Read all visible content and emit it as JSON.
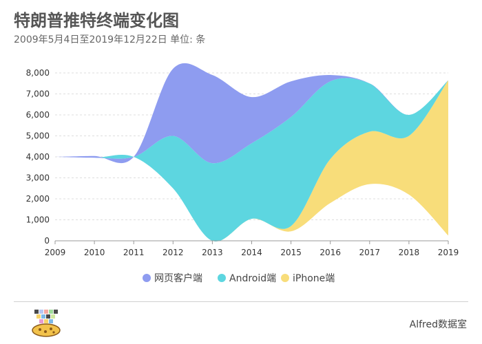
{
  "title": "特朗普推特终端变化图",
  "subtitle": "2009年5月4日至2019年12月22日 单位: 条",
  "brand": "Alfred数据室",
  "chart_data": {
    "type": "area",
    "subtype": "stacked-stream",
    "x": [
      2009,
      2010,
      2011,
      2012,
      2013,
      2014,
      2015,
      2016,
      2017,
      2018,
      2019
    ],
    "ylim": [
      0,
      8000
    ],
    "yticks": [
      0,
      1000,
      2000,
      3000,
      4000,
      5000,
      6000,
      7000,
      8000
    ],
    "ytick_labels": [
      "0",
      "1,000",
      "2,000",
      "3,000",
      "4,000",
      "5,000",
      "6,000",
      "7,000",
      "8,000"
    ],
    "grid": true,
    "legend_position": "bottom",
    "series": [
      {
        "name": "网页客户端",
        "color": "#8E9CF0",
        "values": [
          0,
          80,
          0,
          3200,
          4200,
          2200,
          1700,
          300,
          0,
          0,
          0
        ]
      },
      {
        "name": "Android端",
        "color": "#5DD6E0",
        "values": [
          0,
          0,
          0,
          2500,
          3700,
          3600,
          5200,
          3700,
          2300,
          1000,
          0
        ]
      },
      {
        "name": "iPhone端",
        "color": "#F8DD7A",
        "values": [
          0,
          0,
          0,
          0,
          0,
          0,
          250,
          2100,
          2500,
          2800,
          7400
        ]
      }
    ],
    "baseline": [
      4000,
      3960,
      4000,
      2500,
      0,
      1050,
      450,
      1800,
      2700,
      2200,
      250
    ]
  }
}
